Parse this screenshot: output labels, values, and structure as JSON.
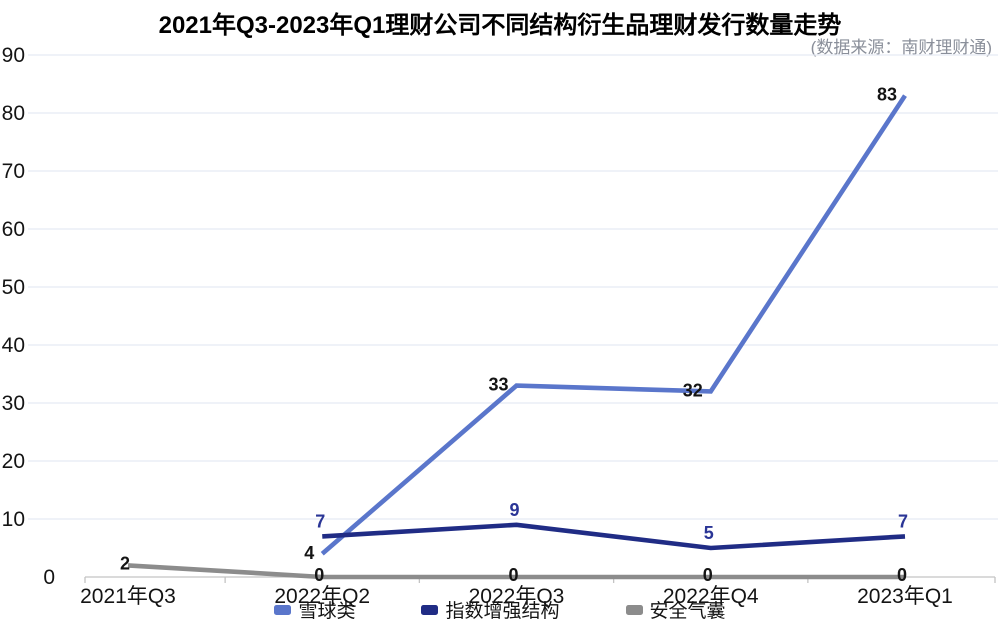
{
  "title": "2021年Q3-2023年Q1理财公司不同结构衍生品理财发行数量走势",
  "source_note": "(数据来源：南财理财通)",
  "chart_data": {
    "type": "line",
    "title": "2021年Q3-2023年Q1理财公司不同结构衍生品理财发行数量走势",
    "subtitle": "(数据来源：南财理财通)",
    "categories": [
      "2021年Q3",
      "2022年Q2",
      "2022年Q3",
      "2022年Q4",
      "2023年Q1"
    ],
    "series": [
      {
        "name": "雪球类",
        "key": "snowball",
        "color": "#5A76CB",
        "label_color": "#141414",
        "label_position": "left",
        "values": [
          null,
          4,
          33,
          32,
          83
        ]
      },
      {
        "name": "指数增强结构",
        "key": "index-enhanced",
        "color": "#202C85",
        "label_color": "#2A3596",
        "label_position": "above",
        "values": [
          null,
          7,
          9,
          5,
          7
        ]
      },
      {
        "name": "安全气囊",
        "key": "airbag",
        "color": "#8C8C8C",
        "label_color": "#141414",
        "label_position": "online",
        "values": [
          2,
          0,
          0,
          0,
          0
        ]
      }
    ],
    "xlabel": "",
    "ylabel": "",
    "ylim": [
      0,
      90
    ],
    "ytick_interval": 10,
    "grid": true,
    "legend_position": "bottom",
    "colors": {
      "grid_line": "#E5E9F3",
      "axis_line": "#C4C4C4",
      "axis_text": "#141414",
      "subtitle_text": "#8A8F9A"
    }
  }
}
